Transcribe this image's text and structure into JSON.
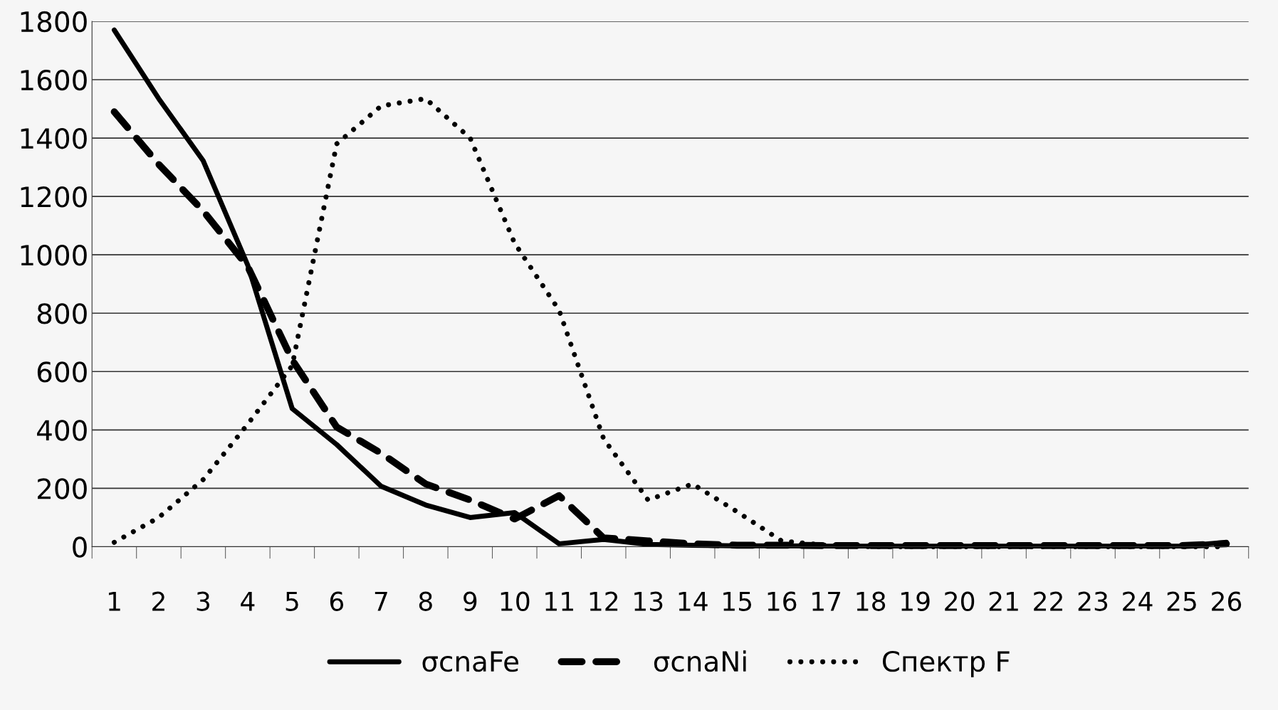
{
  "chart_data": {
    "type": "line",
    "categories": [
      "1",
      "2",
      "3",
      "4",
      "5",
      "6",
      "7",
      "8",
      "9",
      "10",
      "11",
      "12",
      "13",
      "14",
      "15",
      "16",
      "17",
      "18",
      "19",
      "20",
      "21",
      "22",
      "23",
      "24",
      "25",
      "26"
    ],
    "series": [
      {
        "name": "σcnaFe",
        "color": "#000000",
        "line_style": "solid",
        "values": [
          1770,
          1535,
          1322,
          965,
          473,
          350,
          207,
          143,
          100,
          117,
          10,
          25,
          8,
          5,
          3,
          3,
          2,
          2,
          2,
          2,
          2,
          2,
          2,
          2,
          2,
          15
        ]
      },
      {
        "name": "σcnaNi",
        "color": "#000000",
        "line_style": "dashed",
        "values": [
          1490,
          1310,
          1150,
          960,
          640,
          410,
          320,
          215,
          160,
          95,
          175,
          30,
          20,
          10,
          5,
          5,
          4,
          4,
          4,
          4,
          4,
          4,
          4,
          4,
          4,
          10
        ]
      },
      {
        "name": "Спектр F",
        "color": "#000000",
        "line_style": "dotted",
        "values": [
          15,
          100,
          230,
          420,
          620,
          1380,
          1510,
          1535,
          1400,
          1040,
          810,
          370,
          160,
          215,
          120,
          20,
          5,
          0,
          0,
          0,
          0,
          0,
          0,
          0,
          0,
          0
        ]
      }
    ],
    "ylim": [
      0,
      1800
    ],
    "yticks": [
      0,
      200,
      400,
      600,
      800,
      1000,
      1200,
      1400,
      1600,
      1800
    ],
    "grid": "y",
    "legend": "bottom",
    "marker": "none"
  }
}
